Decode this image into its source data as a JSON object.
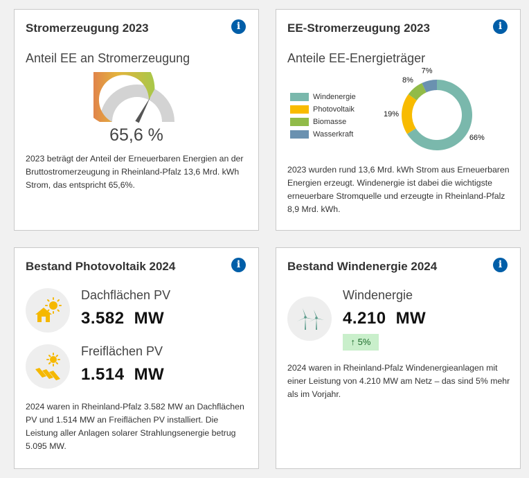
{
  "cards": {
    "strom": {
      "title": "Stromerzeugung 2023",
      "subtitle": "Anteil EE an Stromerzeugung",
      "value": "65,6 %",
      "gauge_fraction": 0.656,
      "description": "2023 beträgt der Anteil der Erneuerbaren Energien an der Bruttostromerzeugung in Rheinland-Pfalz 13,6 Mrd. kWh Strom, das entspricht 65,6%."
    },
    "ee": {
      "title": "EE-Stromerzeugung 2023",
      "subtitle": "Anteile EE-Energieträger",
      "description": "2023 wurden rund 13,6 Mrd. kWh Strom aus Erneuerbaren Energien erzeugt. Windenergie ist dabei die wichtigste erneuerbare Stromquelle und erzeugte in Rheinland-Pfalz 8,9 Mrd. kWh."
    },
    "pv": {
      "title": "Bestand Photovoltaik 2024",
      "dach_label": "Dachflächen PV",
      "dach_value": "3.582",
      "frei_label": "Freiflächen PV",
      "frei_value": "1.514",
      "unit": "MW",
      "description": "2024 waren in Rheinland-Pfalz 3.582 MW an Dachflächen PV und 1.514 MW an Freiflächen PV installiert. Die Leistung aller Anlagen solarer Strahlungsenergie betrug 5.095 MW."
    },
    "wind": {
      "title": "Bestand Windenergie 2024",
      "label": "Windenergie",
      "value": "4.210",
      "unit": "MW",
      "change": "5%",
      "description": "2024 waren in Rheinland-Pfalz Windenergieanlagen mit einer Leistung von 4.210 MW am Netz – das sind 5% mehr als im Vorjahr."
    }
  },
  "info_glyph": "i",
  "change_arrow": "↑",
  "chart_data": {
    "type": "pie",
    "categories": [
      "Windenergie",
      "Photovoltaik",
      "Biomasse",
      "Wasserkraft"
    ],
    "values": [
      66,
      19,
      8,
      7
    ],
    "labels": [
      "66%",
      "19%",
      "8%",
      "7%"
    ],
    "colors": [
      "#7ab8ac",
      "#f8bb00",
      "#91bb48",
      "#6a91b0"
    ],
    "legend_position": "left"
  },
  "colors": {
    "info": "#005ea8",
    "icon_yellow": "#f5b800",
    "icon_teal": "#5a9a8a",
    "badge_bg": "#c9efcb",
    "badge_text": "#1b6b2a"
  }
}
